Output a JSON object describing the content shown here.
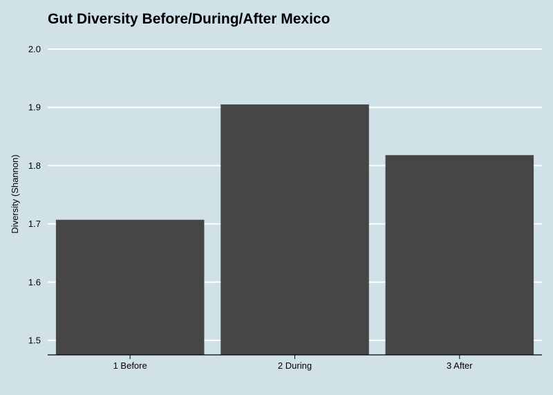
{
  "chart_data": {
    "type": "bar",
    "title": "Gut Diversity Before/During/After Mexico",
    "xlabel": "",
    "ylabel": "Diversity (Shannon)",
    "categories": [
      "1 Before",
      "2 During",
      "3 After"
    ],
    "values": [
      1.707,
      1.905,
      1.818
    ],
    "ylim": [
      1.474,
      2.0
    ],
    "yticks": [
      "1.5",
      "1.6",
      "1.7",
      "1.8",
      "1.9",
      "2.0"
    ],
    "grid": true,
    "colors": {
      "bar": "#464646",
      "background": "#d0e1e8",
      "grid": "#ffffff",
      "axis": "#000000"
    }
  }
}
